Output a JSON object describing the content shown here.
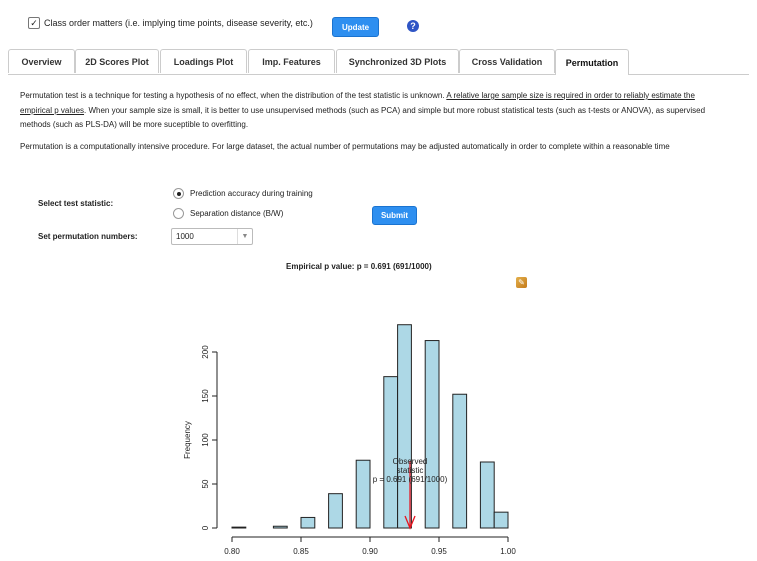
{
  "options": {
    "class_order_label": "Class order matters (i.e. implying time points, disease severity, etc.)",
    "class_order_checked": true,
    "update_label": "Update",
    "help_icon": "question-circle-icon"
  },
  "tabs": [
    {
      "label": "Overview"
    },
    {
      "label": "2D Scores Plot"
    },
    {
      "label": "Loadings Plot"
    },
    {
      "label": "Imp. Features"
    },
    {
      "label": "Synchronized 3D Plots"
    },
    {
      "label": "Cross Validation"
    },
    {
      "label": "Permutation",
      "active": true
    }
  ],
  "description": {
    "p1_text": "Permutation test is a technique for testing a hypothesis of no effect, when the distribution of the test statistic is unknown. ",
    "p1_link": "A relative large sample size is required in order to reliably estimate the empirical p values",
    "p1_rest": ". When your sample size is small, it is better to use unsupervised methods (such as PCA) and simple but more robust statistical tests (such as t-tests or ANOVA), as supervised methods (such as PLS-DA) will be more suceptible to overfitting.",
    "p2": "Permutation is a computationally intensive procedure. For large dataset, the actual number of permutations may be adjusted automatically in order to complete within a reasonable time"
  },
  "form": {
    "stat_label": "Select test statistic:",
    "options": [
      {
        "label": "Prediction accuracy during training",
        "selected": true
      },
      {
        "label": "Separation distance (B/W)",
        "selected": false
      }
    ],
    "perm_label": "Set permutation numbers:",
    "perm_value": "1000",
    "submit_label": "Submit"
  },
  "result": {
    "pvalue_text": "Empirical p value: p = 0.691 (691/1000)",
    "download_icon": "download-image-icon"
  },
  "chart_data": {
    "type": "bar",
    "ylabel": "Frequency",
    "xlim": [
      0.8,
      1.0
    ],
    "ylim": [
      0,
      240
    ],
    "x_ticks": [
      "0.80",
      "0.85",
      "0.90",
      "0.95",
      "1.00"
    ],
    "y_ticks": [
      "0",
      "50",
      "100",
      "150",
      "200"
    ],
    "bin_width": 0.01,
    "bins": [
      {
        "start": 0.8,
        "value": 1
      },
      {
        "start": 0.81,
        "value": 0
      },
      {
        "start": 0.82,
        "value": 0
      },
      {
        "start": 0.83,
        "value": 2
      },
      {
        "start": 0.84,
        "value": 0
      },
      {
        "start": 0.85,
        "value": 12
      },
      {
        "start": 0.86,
        "value": 0
      },
      {
        "start": 0.87,
        "value": 39
      },
      {
        "start": 0.88,
        "value": 0
      },
      {
        "start": 0.89,
        "value": 77
      },
      {
        "start": 0.9,
        "value": 0
      },
      {
        "start": 0.91,
        "value": 172
      },
      {
        "start": 0.92,
        "value": 231
      },
      {
        "start": 0.93,
        "value": 0
      },
      {
        "start": 0.94,
        "value": 213
      },
      {
        "start": 0.95,
        "value": 0
      },
      {
        "start": 0.96,
        "value": 152
      },
      {
        "start": 0.97,
        "value": 0
      },
      {
        "start": 0.98,
        "value": 75
      },
      {
        "start": 0.99,
        "value": 18
      }
    ],
    "bar_color": "#add8e6",
    "observed": {
      "x": 0.929,
      "label_lines": [
        "Observed",
        "statistic",
        "p = 0.691 (691/1000)"
      ],
      "color": "#e8141e"
    }
  }
}
